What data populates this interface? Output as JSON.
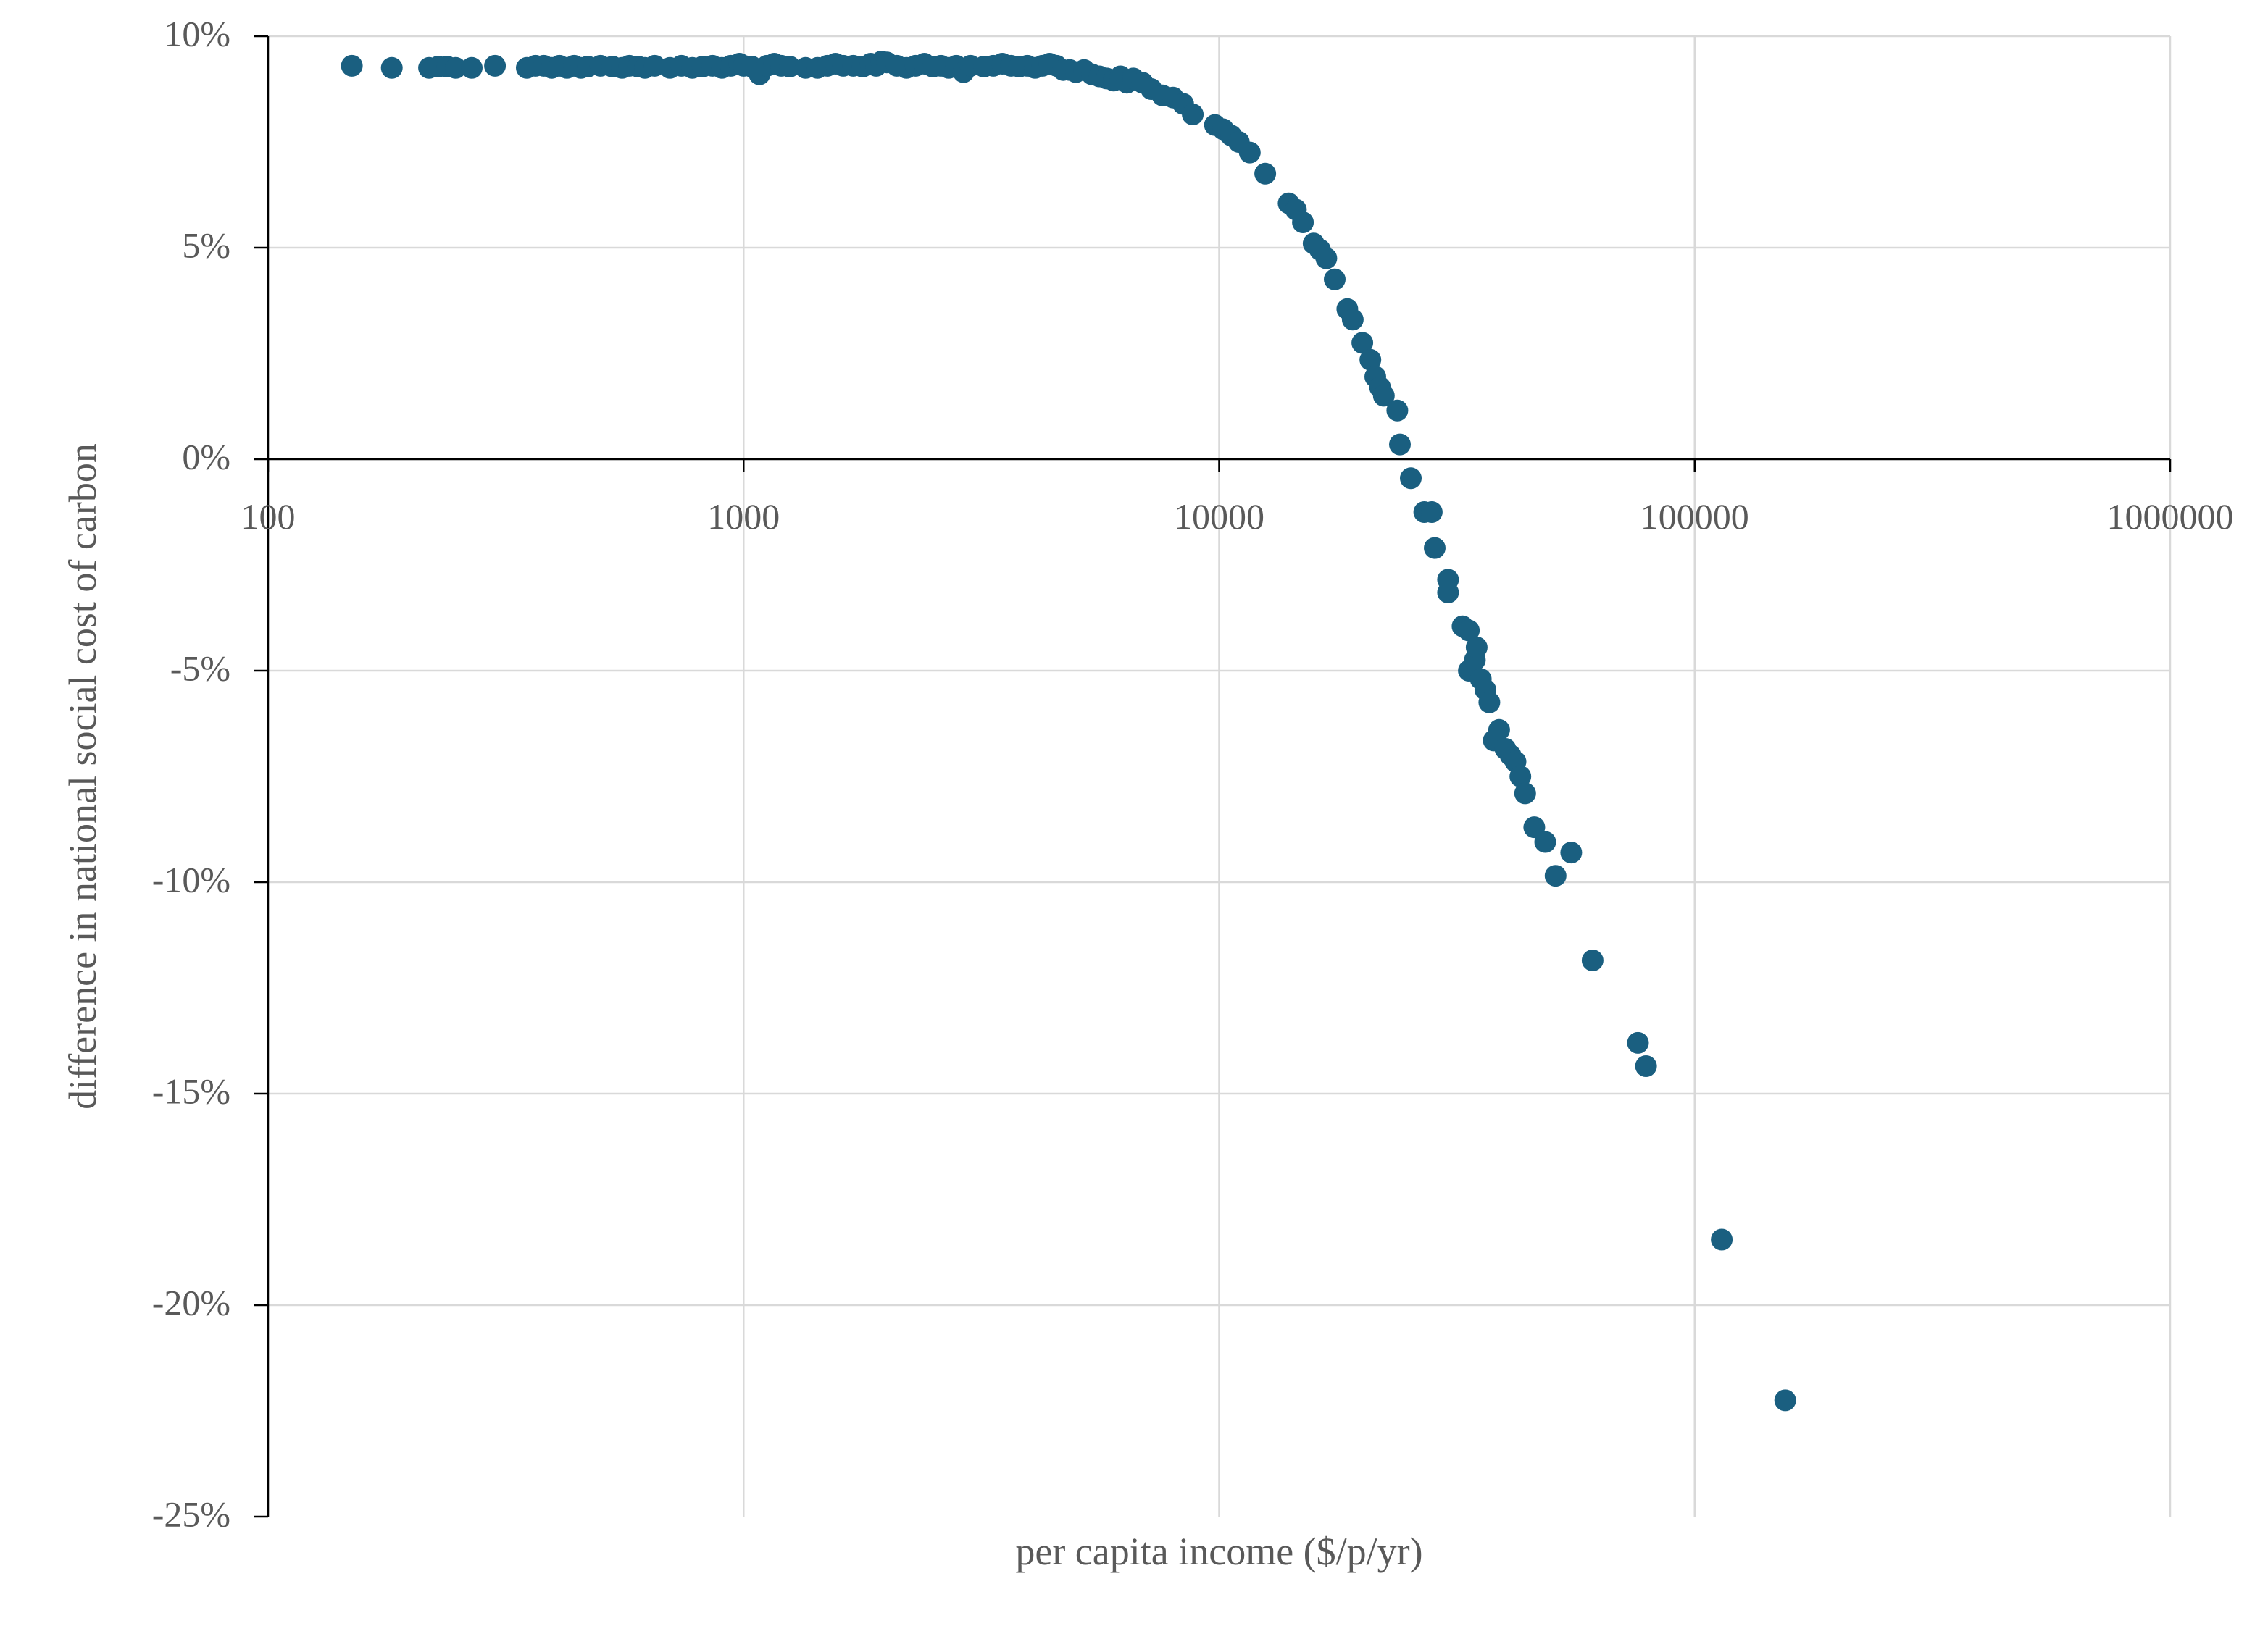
{
  "chart_data": {
    "type": "scatter",
    "title": "",
    "xlabel": "per capita income ($/p/yr)",
    "ylabel": "difference in national social cost of carbon",
    "x_scale": "log",
    "xlim": [
      100,
      1000000
    ],
    "ylim": [
      -25,
      10
    ],
    "x_ticks": [
      100,
      1000,
      10000,
      100000,
      1000000
    ],
    "x_tick_labels": [
      "100",
      "1000",
      "10000",
      "100000",
      "1000000"
    ],
    "y_ticks": [
      10,
      5,
      0,
      -5,
      -10,
      -15,
      -20,
      -25
    ],
    "y_tick_labels": [
      "10%",
      "5%",
      "0%",
      "-5%",
      "-10%",
      "-15%",
      "-20%",
      "-25%"
    ],
    "y_unit": "percent",
    "grid": true,
    "legend": "none",
    "marker_color": "#1a5f80",
    "series": [
      {
        "points": [
          [
            150,
            9.3
          ],
          [
            182,
            9.25
          ],
          [
            218,
            9.25
          ],
          [
            228,
            9.28
          ],
          [
            238,
            9.28
          ],
          [
            248,
            9.25
          ],
          [
            268,
            9.25
          ],
          [
            300,
            9.3
          ],
          [
            350,
            9.25
          ],
          [
            365,
            9.3
          ],
          [
            380,
            9.3
          ],
          [
            395,
            9.25
          ],
          [
            410,
            9.3
          ],
          [
            425,
            9.25
          ],
          [
            440,
            9.3
          ],
          [
            455,
            9.25
          ],
          [
            470,
            9.28
          ],
          [
            500,
            9.3
          ],
          [
            530,
            9.28
          ],
          [
            555,
            9.25
          ],
          [
            575,
            9.3
          ],
          [
            600,
            9.28
          ],
          [
            620,
            9.25
          ],
          [
            650,
            9.3
          ],
          [
            700,
            9.25
          ],
          [
            740,
            9.3
          ],
          [
            780,
            9.25
          ],
          [
            820,
            9.28
          ],
          [
            860,
            9.3
          ],
          [
            900,
            9.25
          ],
          [
            940,
            9.3
          ],
          [
            980,
            9.35
          ],
          [
            1000,
            9.3
          ],
          [
            1040,
            9.28
          ],
          [
            1080,
            9.1
          ],
          [
            1120,
            9.3
          ],
          [
            1160,
            9.35
          ],
          [
            1200,
            9.3
          ],
          [
            1250,
            9.28
          ],
          [
            1350,
            9.25
          ],
          [
            1430,
            9.25
          ],
          [
            1500,
            9.3
          ],
          [
            1560,
            9.35
          ],
          [
            1620,
            9.3
          ],
          [
            1700,
            9.3
          ],
          [
            1780,
            9.28
          ],
          [
            1850,
            9.35
          ],
          [
            1900,
            9.3
          ],
          [
            1950,
            9.4
          ],
          [
            2000,
            9.38
          ],
          [
            2100,
            9.3
          ],
          [
            2200,
            9.25
          ],
          [
            2300,
            9.3
          ],
          [
            2400,
            9.35
          ],
          [
            2500,
            9.28
          ],
          [
            2600,
            9.3
          ],
          [
            2700,
            9.25
          ],
          [
            2800,
            9.3
          ],
          [
            2900,
            9.15
          ],
          [
            3000,
            9.3
          ],
          [
            3200,
            9.28
          ],
          [
            3350,
            9.3
          ],
          [
            3500,
            9.35
          ],
          [
            3650,
            9.3
          ],
          [
            3800,
            9.28
          ],
          [
            3950,
            9.3
          ],
          [
            4100,
            9.25
          ],
          [
            4250,
            9.3
          ],
          [
            4400,
            9.35
          ],
          [
            4550,
            9.3
          ],
          [
            4700,
            9.2
          ],
          [
            4850,
            9.2
          ],
          [
            5000,
            9.15
          ],
          [
            5200,
            9.2
          ],
          [
            5400,
            9.1
          ],
          [
            5600,
            9.05
          ],
          [
            5800,
            9.0
          ],
          [
            6000,
            8.95
          ],
          [
            6200,
            9.05
          ],
          [
            6400,
            8.9
          ],
          [
            6600,
            9.0
          ],
          [
            6900,
            8.9
          ],
          [
            7200,
            8.75
          ],
          [
            7600,
            8.6
          ],
          [
            8000,
            8.55
          ],
          [
            8400,
            8.4
          ],
          [
            8800,
            8.15
          ],
          [
            9800,
            7.9
          ],
          [
            10200,
            7.8
          ],
          [
            10600,
            7.65
          ],
          [
            11000,
            7.5
          ],
          [
            11600,
            7.25
          ],
          [
            12500,
            6.75
          ],
          [
            14000,
            6.05
          ],
          [
            14500,
            5.9
          ],
          [
            15000,
            5.6
          ],
          [
            15800,
            5.1
          ],
          [
            16300,
            4.95
          ],
          [
            16800,
            4.75
          ],
          [
            17500,
            4.25
          ],
          [
            18600,
            3.55
          ],
          [
            19100,
            3.3
          ],
          [
            20000,
            2.75
          ],
          [
            20800,
            2.35
          ],
          [
            21300,
            1.95
          ],
          [
            21800,
            1.7
          ],
          [
            22200,
            1.5
          ],
          [
            23700,
            1.15
          ],
          [
            24000,
            0.35
          ],
          [
            25300,
            -0.45
          ],
          [
            27000,
            -1.25
          ],
          [
            28000,
            -1.25
          ],
          [
            28400,
            -2.1
          ],
          [
            30300,
            -2.85
          ],
          [
            30300,
            -3.15
          ],
          [
            32500,
            -3.95
          ],
          [
            33500,
            -4.05
          ],
          [
            33500,
            -5.0
          ],
          [
            34500,
            -4.75
          ],
          [
            34800,
            -4.45
          ],
          [
            35500,
            -5.2
          ],
          [
            36300,
            -5.45
          ],
          [
            37000,
            -5.75
          ],
          [
            37800,
            -6.65
          ],
          [
            38800,
            -6.4
          ],
          [
            40000,
            -6.85
          ],
          [
            41000,
            -7.0
          ],
          [
            42000,
            -7.15
          ],
          [
            43000,
            -7.5
          ],
          [
            44000,
            -7.9
          ],
          [
            46000,
            -8.7
          ],
          [
            48500,
            -9.05
          ],
          [
            51000,
            -9.85
          ],
          [
            55000,
            -9.3
          ],
          [
            61000,
            -11.85
          ],
          [
            76000,
            -13.8
          ],
          [
            79000,
            -14.35
          ],
          [
            114000,
            -18.45
          ],
          [
            155000,
            -22.25
          ]
        ]
      }
    ]
  }
}
